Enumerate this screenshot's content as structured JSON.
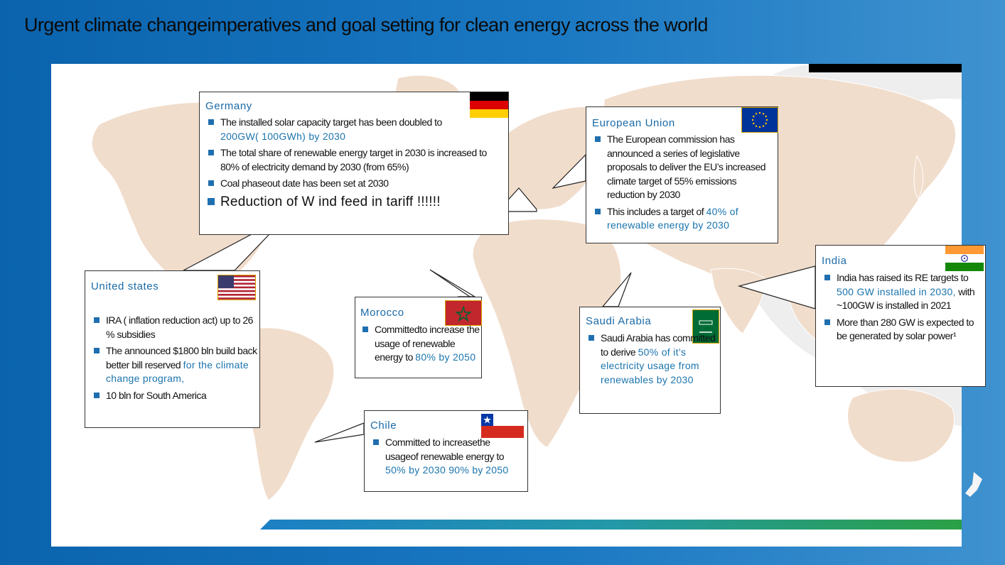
{
  "slide": {
    "title": "Urgent  climate changeimperatives and goal setting for  clean energy across the world"
  },
  "colors": {
    "background": "#0b63ad",
    "panel": "#ffffff",
    "map_land": "#f1ddcc",
    "bullet": "#1f6fb0",
    "highlight_text": "#1b74ad"
  },
  "boxes": {
    "germany": {
      "title": "Germany",
      "flag": "germany-flag",
      "items": [
        {
          "text": "The installed solar capacity target has been doubled to",
          "highlight": "200GW( 100GWh) by 2030"
        },
        {
          "text": "The total  share of renewable energy target in 2030 is increased to  80% of electricity   demand by 2030 (from  65%)"
        },
        {
          "text": "Coal phaseout  date has been set at 2030"
        },
        {
          "text": "Reduction of W ind feed in tariff  !!!!!!"
        }
      ]
    },
    "eu": {
      "title": "European Union",
      "flag": "eu-flag",
      "items": [
        {
          "text": "The European commission has announced a series of legislative proposals to deliver the EU’s increased climate target of 55% emissions reduction  by 2030"
        },
        {
          "text": "This includes a target of",
          "highlight": "40% of renewable energy by 2030"
        }
      ]
    },
    "india": {
      "title": "India",
      "flag": "india-flag",
      "items": [
        {
          "text": "India has raised its RE targets to",
          "highlight": "500 GW  installed in 2030,",
          "rest": "with ~100GW is installed in 2021"
        },
        {
          "text": "More than 280 GW  is expected to  be generated by solar power¹"
        }
      ]
    },
    "usa": {
      "title": "United states",
      "flag": "usa-flag",
      "items": [
        {
          "text": "IRA ( inflation reduction act) up to  26 % subsidies"
        },
        {
          "text": "The announced $1800 bln  build back better  bill reserved",
          "highlight": "for the climate change program,"
        },
        {
          "text": "10 bln for South America"
        }
      ]
    },
    "morocco": {
      "title": "Morocco",
      "flag": "morocco-flag",
      "items": [
        {
          "text": "Committedto increase the usage of renewable energy to",
          "highlight": "80% by 2050"
        }
      ]
    },
    "saudi": {
      "title": "Saudi Arabia",
      "flag": "saudi-flag",
      "items": [
        {
          "text": "Saudi Arabia has committed to derive",
          "highlight": "50% of it’s electricity usage from renewables by 2030"
        }
      ]
    },
    "chile": {
      "title": "Chile",
      "flag": "chile-flag",
      "items": [
        {
          "text": "Committed to increasethe usageof renewable energy to",
          "highlight": "50% by 2030 90% by",
          "rest": "2050"
        }
      ]
    }
  }
}
